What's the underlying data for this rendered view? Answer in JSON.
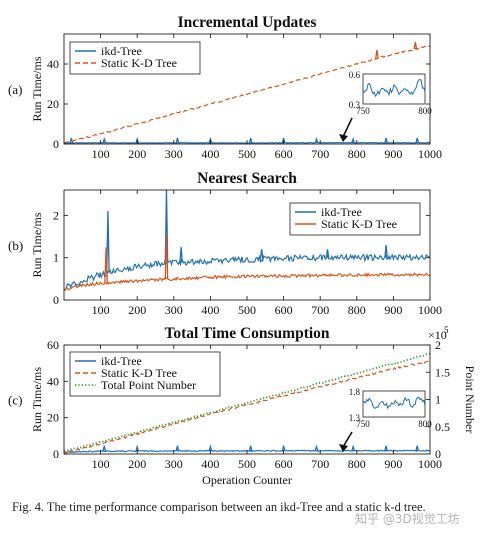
{
  "chart_data": [
    {
      "type": "line",
      "panel_label": "(a)",
      "title": "Incremental Updates",
      "xlabel": "",
      "ylabel": "Run Time/ms",
      "xlim": [
        0,
        1000
      ],
      "ylim": [
        0,
        55
      ],
      "xticks": [
        100,
        200,
        300,
        400,
        500,
        600,
        700,
        800,
        900,
        1000
      ],
      "yticks": [
        0,
        20,
        40
      ],
      "legend_position": "top-left",
      "series": [
        {
          "name": "ikd-Tree",
          "color": "#1f6fb4",
          "style": "solid",
          "x": [
            0,
            100,
            200,
            300,
            400,
            500,
            600,
            700,
            800,
            900,
            1000
          ],
          "y": [
            0.5,
            0.6,
            0.5,
            0.6,
            0.6,
            0.5,
            0.6,
            0.6,
            0.6,
            0.6,
            0.6
          ],
          "spikes": [
            {
              "x": 20,
              "y": 3
            },
            {
              "x": 110,
              "y": 2.5
            },
            {
              "x": 200,
              "y": 2.5
            },
            {
              "x": 310,
              "y": 3
            },
            {
              "x": 400,
              "y": 2.5
            },
            {
              "x": 510,
              "y": 3
            },
            {
              "x": 600,
              "y": 3
            },
            {
              "x": 690,
              "y": 2.5
            },
            {
              "x": 790,
              "y": 2.5
            },
            {
              "x": 880,
              "y": 3
            },
            {
              "x": 965,
              "y": 3
            }
          ]
        },
        {
          "name": "Static K-D Tree",
          "color": "#d95319",
          "style": "dashed",
          "x": [
            0,
            100,
            200,
            300,
            400,
            500,
            600,
            700,
            800,
            900,
            1000
          ],
          "y": [
            0.5,
            5,
            10,
            15,
            20,
            25,
            30,
            35,
            40,
            45,
            49
          ],
          "spikes": [
            {
              "x": 855,
              "y": 47
            },
            {
              "x": 960,
              "y": 51
            }
          ]
        }
      ],
      "inset": {
        "xlim": [
          750,
          800
        ],
        "ylim": [
          0.3,
          0.6
        ],
        "xticks": [
          750,
          800
        ],
        "yticks": [
          0.3,
          0.6
        ],
        "arrow_target_x": 775,
        "series": [
          {
            "name": "ikd-Tree",
            "x": [
              750,
              755,
              760,
              765,
              770,
              775,
              780,
              785,
              790,
              795,
              800
            ],
            "y": [
              0.42,
              0.5,
              0.38,
              0.45,
              0.4,
              0.47,
              0.41,
              0.46,
              0.39,
              0.55,
              0.44
            ]
          }
        ]
      }
    },
    {
      "type": "line",
      "panel_label": "(b)",
      "title": "Nearest Search",
      "xlabel": "",
      "ylabel": "Run Time/ms",
      "xlim": [
        0,
        1000
      ],
      "ylim": [
        0,
        2.6
      ],
      "xticks": [
        100,
        200,
        300,
        400,
        500,
        600,
        700,
        800,
        900,
        1000
      ],
      "yticks": [
        0,
        1,
        2
      ],
      "legend_position": "top-right",
      "series": [
        {
          "name": "ikd-Tree",
          "color": "#1f6fb4",
          "style": "solid",
          "x": [
            0,
            50,
            100,
            150,
            200,
            250,
            300,
            350,
            400,
            500,
            600,
            700,
            800,
            900,
            1000
          ],
          "y": [
            0.3,
            0.45,
            0.6,
            0.7,
            0.78,
            0.85,
            0.88,
            0.9,
            0.92,
            0.96,
            0.98,
            1.0,
            1.0,
            1.0,
            1.0
          ],
          "spikes": [
            {
              "x": 120,
              "y": 2.1
            },
            {
              "x": 280,
              "y": 2.6
            },
            {
              "x": 320,
              "y": 1.25
            },
            {
              "x": 540,
              "y": 1.2
            },
            {
              "x": 720,
              "y": 1.2
            },
            {
              "x": 880,
              "y": 1.3
            }
          ]
        },
        {
          "name": "Static K-D Tree",
          "color": "#d95319",
          "style": "solid",
          "x": [
            0,
            50,
            100,
            150,
            200,
            250,
            300,
            350,
            400,
            500,
            600,
            700,
            800,
            900,
            1000
          ],
          "y": [
            0.25,
            0.35,
            0.4,
            0.42,
            0.45,
            0.48,
            0.5,
            0.52,
            0.54,
            0.56,
            0.57,
            0.58,
            0.59,
            0.6,
            0.6
          ],
          "spikes": [
            {
              "x": 115,
              "y": 1.25
            },
            {
              "x": 280,
              "y": 1.55
            }
          ]
        }
      ]
    },
    {
      "type": "line",
      "panel_label": "(c)",
      "title": "Total Time Consumption",
      "xlabel": "Operation Counter",
      "ylabel": "Run Time/ms",
      "ylabel_right": "Point Number",
      "right_axis_exponent": "×10",
      "right_axis_exponent_power": "5",
      "xlim": [
        0,
        1000
      ],
      "ylim": [
        0,
        60
      ],
      "ylim_right": [
        0,
        2
      ],
      "xticks": [
        100,
        200,
        300,
        400,
        500,
        600,
        700,
        800,
        900,
        1000
      ],
      "yticks": [
        0,
        20,
        40,
        60
      ],
      "yticks_right": [
        0,
        0.5,
        1,
        1.5,
        2
      ],
      "legend_position": "top-left",
      "series": [
        {
          "name": "ikd-Tree",
          "color": "#1f6fb4",
          "style": "solid",
          "axis": "left",
          "x": [
            0,
            100,
            200,
            300,
            400,
            500,
            600,
            700,
            800,
            900,
            1000
          ],
          "y": [
            1.0,
            1.6,
            1.6,
            1.7,
            1.7,
            1.7,
            1.8,
            1.8,
            1.8,
            1.8,
            1.8
          ],
          "spikes": [
            {
              "x": 110,
              "y": 4.5
            },
            {
              "x": 200,
              "y": 4
            },
            {
              "x": 310,
              "y": 4.5
            },
            {
              "x": 400,
              "y": 4
            },
            {
              "x": 510,
              "y": 4.5
            },
            {
              "x": 600,
              "y": 4.5
            },
            {
              "x": 690,
              "y": 4
            },
            {
              "x": 790,
              "y": 4
            },
            {
              "x": 880,
              "y": 4.5
            },
            {
              "x": 965,
              "y": 4.5
            }
          ]
        },
        {
          "name": "Static K-D Tree",
          "color": "#d95319",
          "style": "dashed",
          "axis": "left",
          "x": [
            0,
            100,
            200,
            300,
            400,
            500,
            600,
            700,
            800,
            900,
            1000
          ],
          "y": [
            0.5,
            5.5,
            11,
            16.5,
            22,
            27,
            32,
            37,
            42,
            47,
            51
          ],
          "spikes": []
        },
        {
          "name": "Total Point Number",
          "color": "#3a9a3a",
          "style": "dotted",
          "axis": "right",
          "x": [
            0,
            100,
            200,
            300,
            400,
            500,
            600,
            700,
            800,
            900,
            1000
          ],
          "y": [
            0.05,
            0.22,
            0.4,
            0.58,
            0.76,
            0.94,
            1.12,
            1.3,
            1.48,
            1.66,
            1.84
          ],
          "spikes": []
        }
      ],
      "inset": {
        "xlim": [
          750,
          800
        ],
        "ylim": [
          1.3,
          1.8
        ],
        "xticks": [
          750,
          800
        ],
        "yticks": [
          1.3,
          1.8
        ],
        "arrow_target_x": 775,
        "series": [
          {
            "name": "ikd-Tree",
            "x": [
              750,
              755,
              760,
              765,
              770,
              775,
              780,
              785,
              790,
              795,
              800
            ],
            "y": [
              1.55,
              1.62,
              1.48,
              1.58,
              1.5,
              1.6,
              1.52,
              1.66,
              1.5,
              1.7,
              1.56
            ]
          }
        ]
      }
    }
  ],
  "caption": "Fig. 4.   The time performance comparison between an ikd-Tree and a static k-d tree.",
  "watermark": "知乎 @3D视觉工坊"
}
